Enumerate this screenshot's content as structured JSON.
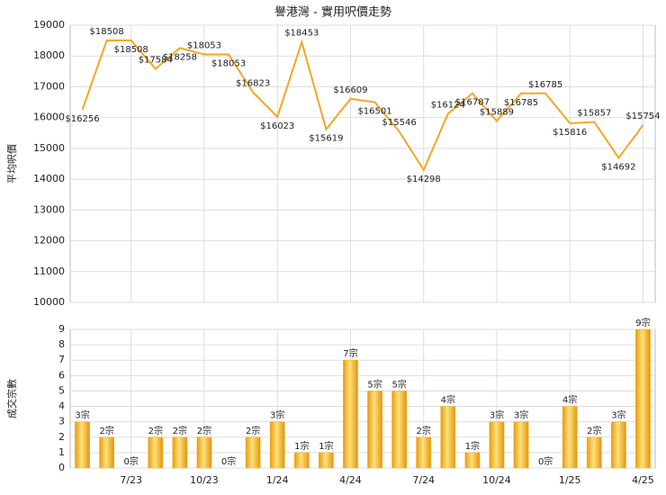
{
  "chart_data": [
    {
      "type": "line",
      "title": "譽港灣 - 實用呎價走勢",
      "y_label": "平均呎價",
      "color": "#f5a623",
      "values": [
        16256,
        18508,
        18508,
        17584,
        18258,
        18053,
        18053,
        16823,
        16023,
        18453,
        15619,
        16609,
        16501,
        15546,
        14298,
        16124,
        16787,
        15889,
        16785,
        16785,
        15816,
        15857,
        14692,
        15754
      ],
      "value_labels": [
        "$16256",
        "$18508",
        "$18508",
        "$17584",
        "$18258",
        "$18053",
        "$18053",
        "$16823",
        "$16023",
        "$18453",
        "$15619",
        "$16609",
        "$16501",
        "$15546",
        "$14298",
        "$16124",
        "$16787",
        "$15889",
        "$16785",
        "$16785",
        "$15816",
        "$15857",
        "$14692",
        "$15754"
      ],
      "ylim": [
        10000,
        19000
      ],
      "yticks": [
        10000,
        11000,
        12000,
        13000,
        14000,
        15000,
        16000,
        17000,
        18000,
        19000
      ],
      "grid": true
    },
    {
      "type": "bar",
      "y_label": "成交宗數",
      "color": "#f0b020",
      "categories": [
        null,
        null,
        "7/23",
        null,
        null,
        "10/23",
        null,
        null,
        "1/24",
        null,
        null,
        "4/24",
        null,
        null,
        "7/24",
        null,
        null,
        "10/24",
        null,
        null,
        "1/25",
        null,
        null,
        "4/25"
      ],
      "values": [
        3,
        2,
        0,
        2,
        2,
        2,
        0,
        2,
        3,
        1,
        1,
        7,
        5,
        5,
        2,
        4,
        1,
        3,
        3,
        0,
        4,
        2,
        3,
        9
      ],
      "value_labels": [
        "3宗",
        "2宗",
        "0宗",
        "2宗",
        "2宗",
        "2宗",
        "0宗",
        "2宗",
        "3宗",
        "1宗",
        "1宗",
        "7宗",
        "5宗",
        "5宗",
        "2宗",
        "4宗",
        "1宗",
        "3宗",
        "3宗",
        "0宗",
        "4宗",
        "2宗",
        "3宗",
        "9宗"
      ],
      "ylim": [
        0,
        9
      ],
      "yticks": [
        0,
        1,
        2,
        3,
        4,
        5,
        6,
        7,
        8,
        9
      ],
      "grid": true
    }
  ]
}
